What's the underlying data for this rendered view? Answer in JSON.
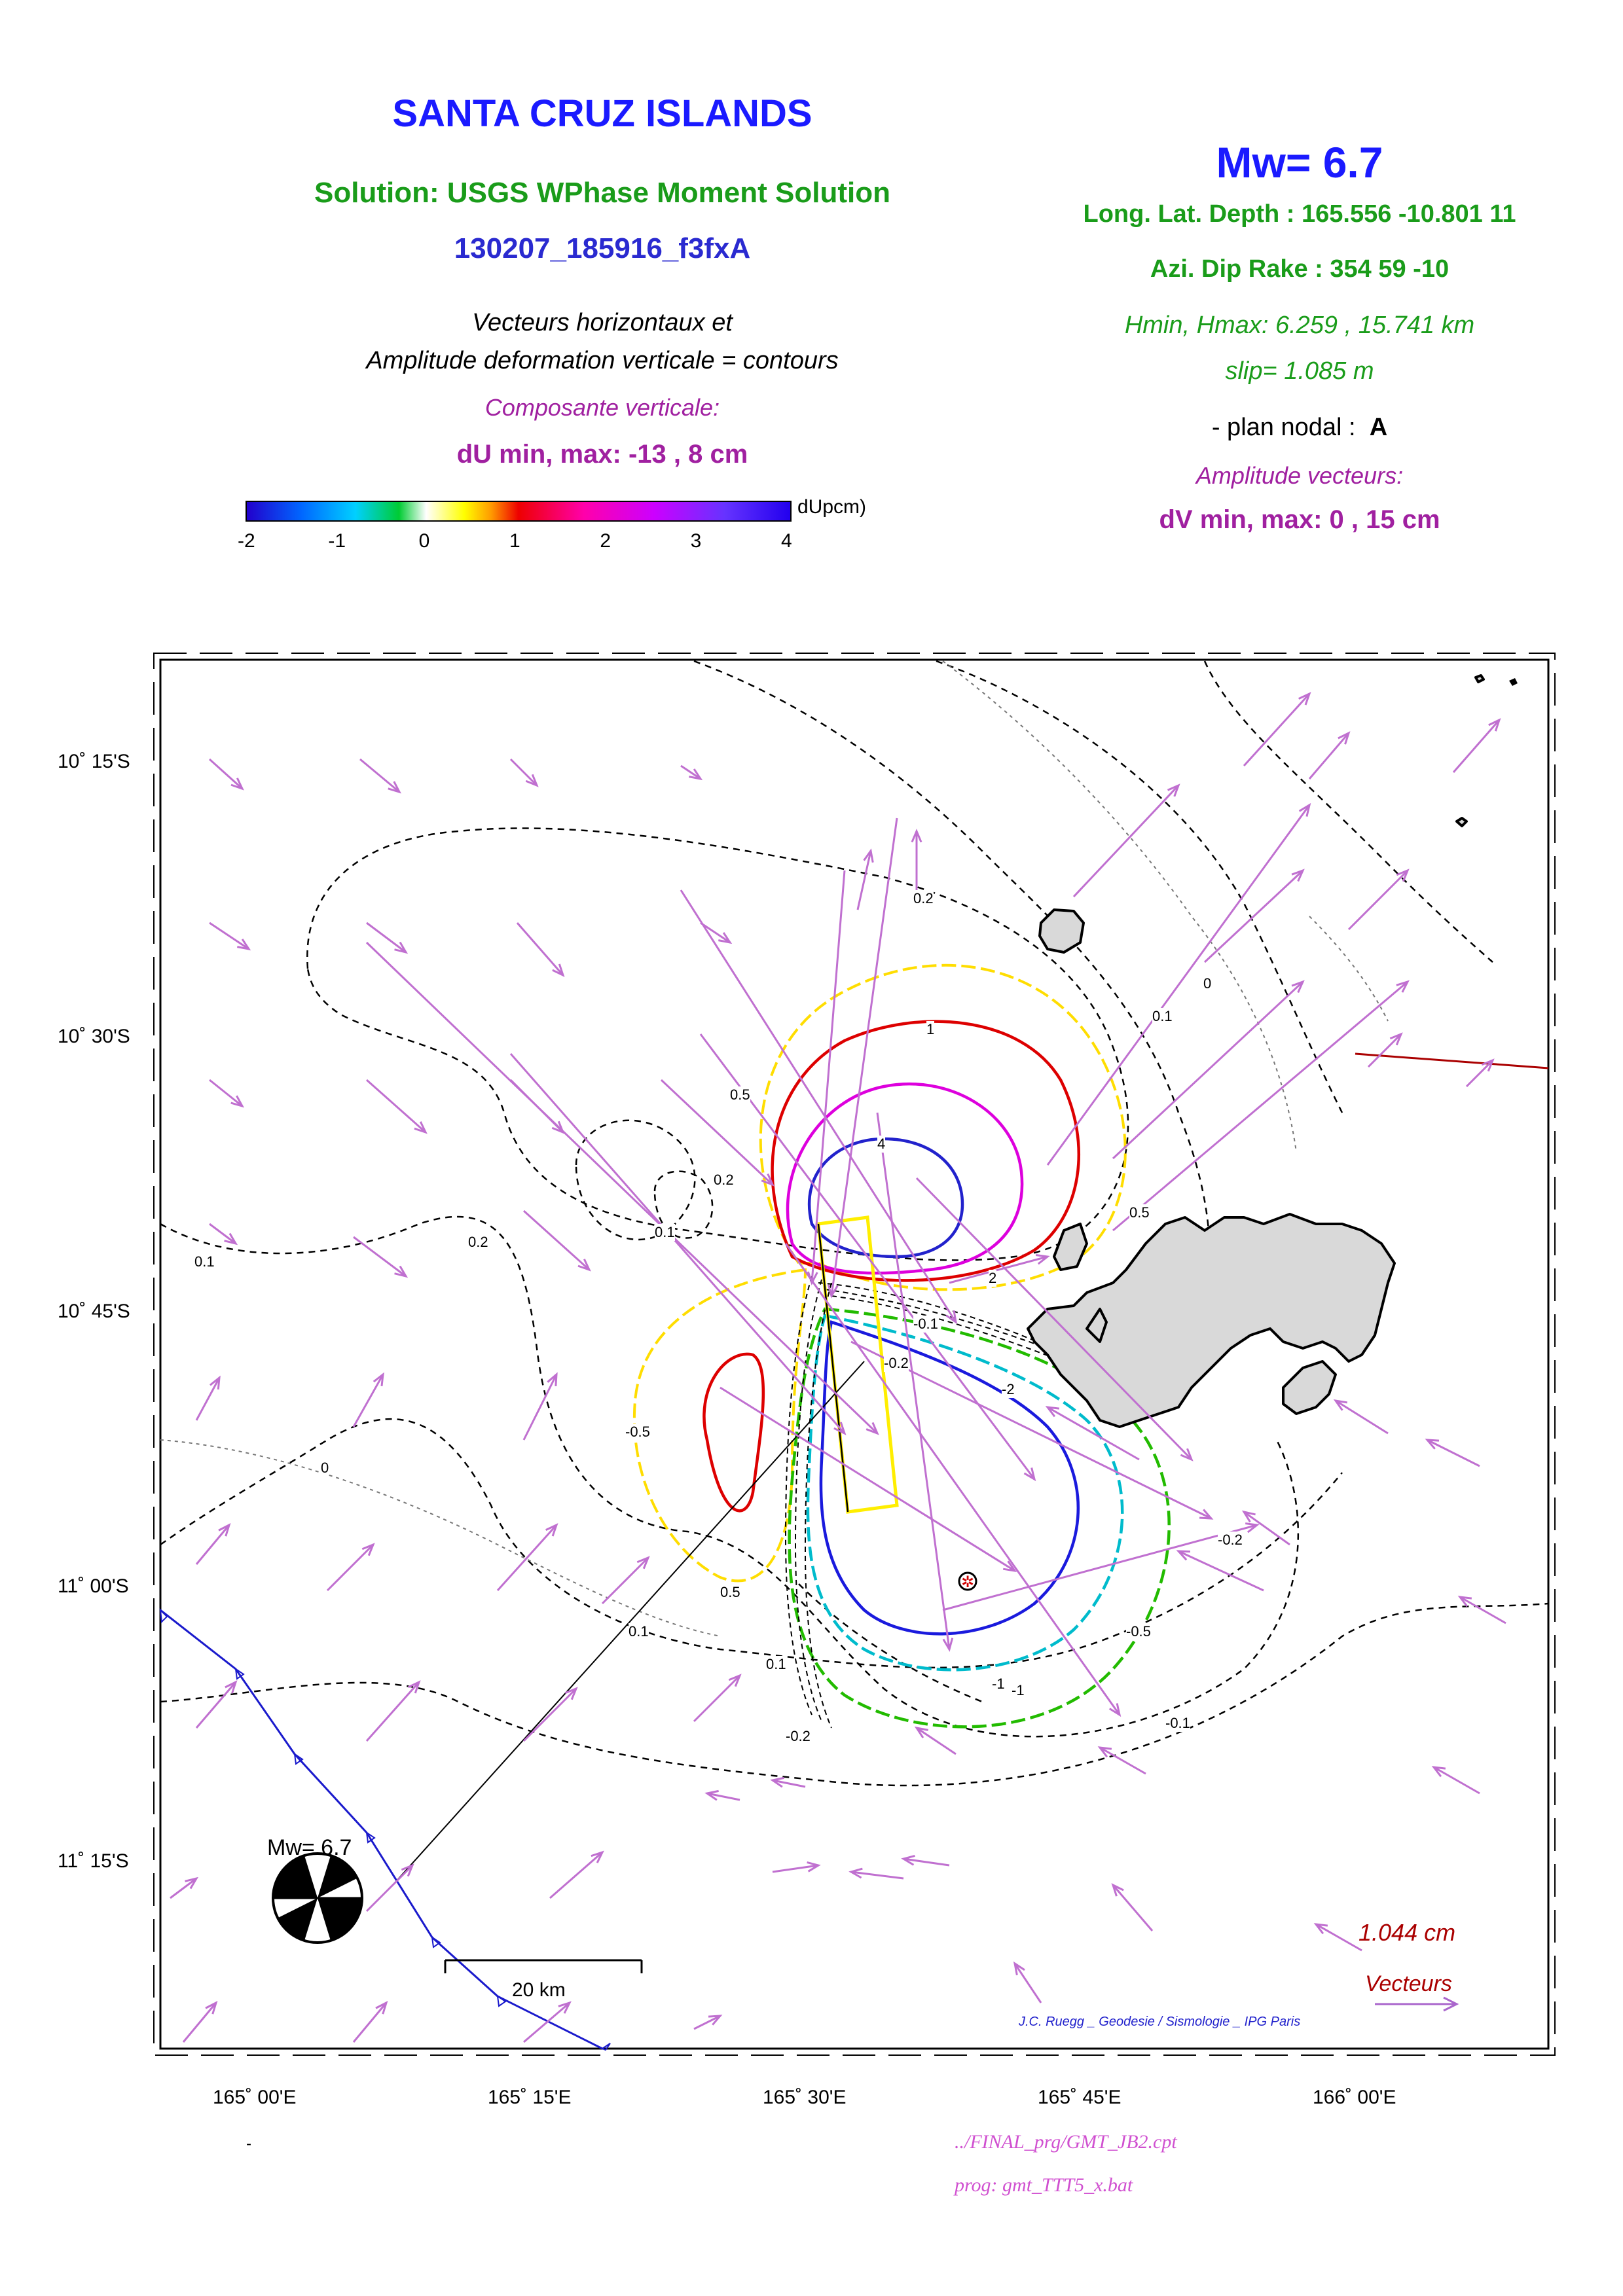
{
  "header": {
    "title": "SANTA CRUZ ISLANDS",
    "solution": "Solution: USGS WPhase Moment Solution",
    "event_id": "130207_185916_f3fxA",
    "desc_line1": "Vecteurs horizontaux et",
    "desc_line2": "Amplitude deformation verticale = contours",
    "vertical_component": "Composante verticale:",
    "du_range": "dU min, max:  -13 , 8 cm"
  },
  "source": {
    "mw": "Mw= 6.7",
    "location": "Long. Lat. Depth : 165.556 -10.801 11",
    "mechanism": "Azi.  Dip   Rake :  354 59 -10",
    "hmin_hmax": "Hmin, Hmax:  6.259 , 15.741 km",
    "slip": "slip= 1.085 m",
    "nodal_plane_label": "- plan nodal :",
    "nodal_plane_value": "A",
    "vector_amplitude": "Amplitude vecteurs:",
    "dv_range": "dV min, max:  0 , 15 cm"
  },
  "colorbar": {
    "unit": "dUpcm)",
    "ticks": [
      "-2",
      "-1",
      "0",
      "1",
      "2",
      "3",
      "4"
    ]
  },
  "map": {
    "lat_labels": [
      "10˚ 15'S",
      "10˚ 30'S",
      "10˚ 45'S",
      "11˚ 00'S",
      "11˚ 15'S"
    ],
    "lon_labels": [
      "165˚ 00'E",
      "165˚ 15'E",
      "165˚ 30'E",
      "165˚ 45'E",
      "166˚ 00'E"
    ],
    "contour_labels": [
      "4",
      "1",
      "2",
      "0.5",
      "0.2",
      "0.1",
      "0",
      "-0.1",
      "-0.2",
      "-0.5",
      "-1",
      "-2"
    ],
    "beachball_label": "Mw= 6.7",
    "scale_label": "20 km",
    "vector_scale_value": "1.044  cm",
    "vector_scale_label": "Vecteurs",
    "credit": "J.C. Ruegg _ Geodesie / Sismologie _ IPG Paris"
  },
  "footer": {
    "cpt": "../FINAL_prg/GMT_JB2.cpt",
    "prog": "prog: gmt_TTT5_x.bat",
    "dash": "-"
  },
  "colors": {
    "title": "#1a1aff",
    "green_text": "#1a9c1a",
    "purple_text": "#a020a0",
    "vector": "#c070d0",
    "trench": "#1a1acc",
    "fault_box": "#ffee00"
  }
}
